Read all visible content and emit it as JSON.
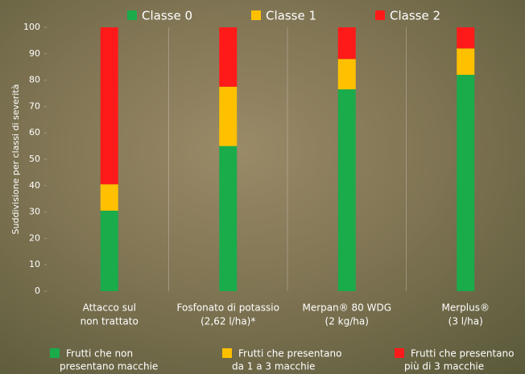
{
  "chart_data": {
    "type": "stacked_bar",
    "y_label": "Suddivisione per classi di severità",
    "categories": [
      [
        "Attacco sul",
        "non trattato"
      ],
      [
        "Fosfonato di potassio",
        "(2,62 l/ha)*"
      ],
      [
        "Merpan® 80 WDG",
        "(2 kg/ha)"
      ],
      [
        "Merplus®",
        "(3 l/ha)"
      ]
    ],
    "series": [
      {
        "name": "Classe 0",
        "color": "#1aab4b",
        "values": [
          30.5,
          55,
          76.5,
          82
        ],
        "description": [
          "Frutti che non",
          "presentano macchie"
        ]
      },
      {
        "name": "Classe 1",
        "color": "#ffc000",
        "values": [
          10,
          22.5,
          11.5,
          10
        ],
        "description": [
          "Frutti che presentano",
          "da 1 a 3 macchie"
        ]
      },
      {
        "name": "Classe 2",
        "color": "#ff1a1a",
        "values": [
          59.5,
          22.5,
          12,
          8
        ],
        "description": [
          "Frutti che presentano",
          "più di 3 macchie"
        ]
      }
    ],
    "ylim": [
      0,
      100
    ],
    "yticks": [
      0,
      10,
      20,
      30,
      40,
      50,
      60,
      70,
      80,
      90,
      100
    ],
    "grid": false
  }
}
